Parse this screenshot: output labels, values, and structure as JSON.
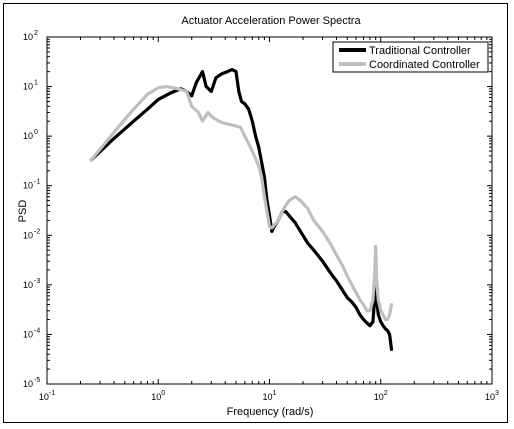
{
  "chart_data": {
    "type": "line",
    "title": "Actuator Acceleration Power Spectra",
    "xlabel": "Frequency (rad/s)",
    "ylabel": "PSD",
    "x_scale": "log",
    "y_scale": "log",
    "xlim": [
      0.1,
      1000
    ],
    "ylim": [
      1e-05,
      100
    ],
    "x_ticks": [
      {
        "value": 0.1,
        "base": "10",
        "exp": "-1"
      },
      {
        "value": 1,
        "base": "10",
        "exp": "0"
      },
      {
        "value": 10,
        "base": "10",
        "exp": "1"
      },
      {
        "value": 100,
        "base": "10",
        "exp": "2"
      },
      {
        "value": 1000,
        "base": "10",
        "exp": "3"
      }
    ],
    "y_ticks": [
      {
        "value": 1e-05,
        "base": "10",
        "exp": "-5"
      },
      {
        "value": 0.0001,
        "base": "10",
        "exp": "-4"
      },
      {
        "value": 0.001,
        "base": "10",
        "exp": "-3"
      },
      {
        "value": 0.01,
        "base": "10",
        "exp": "-2"
      },
      {
        "value": 0.1,
        "base": "10",
        "exp": "-1"
      },
      {
        "value": 1,
        "base": "10",
        "exp": "0"
      },
      {
        "value": 10,
        "base": "10",
        "exp": "1"
      },
      {
        "value": 100,
        "base": "10",
        "exp": "2"
      }
    ],
    "grid": false,
    "legend_position": "top-right",
    "series": [
      {
        "name": "Traditional Controller",
        "color": "#000000",
        "x": [
          0.25,
          0.4,
          0.6,
          0.8,
          1.0,
          1.3,
          1.6,
          1.8,
          2.0,
          2.2,
          2.5,
          2.7,
          3.0,
          3.3,
          3.7,
          4.2,
          4.6,
          5.0,
          5.3,
          5.6,
          6.0,
          6.5,
          7.0,
          7.5,
          8.0,
          8.5,
          9.0,
          9.5,
          10.0,
          10.5,
          11.0,
          12.0,
          13.0,
          14.0,
          15.0,
          17.0,
          19.0,
          22.0,
          25.0,
          30.0,
          35.0,
          40.0,
          45.0,
          50.0,
          55.0,
          60.0,
          65.0,
          70.0,
          75.0,
          80.0,
          85.0,
          88.0,
          90.0,
          92.0,
          95.0,
          100.0,
          105.0,
          110.0,
          115.0,
          120.0,
          125.0
        ],
        "y": [
          0.33,
          0.9,
          2.0,
          3.5,
          5.5,
          7.5,
          9.0,
          8.0,
          6.5,
          12.0,
          20.0,
          10.0,
          8.0,
          15.0,
          18.0,
          20.0,
          22.0,
          20.0,
          8.0,
          5.0,
          4.5,
          3.5,
          2.0,
          1.0,
          0.6,
          0.3,
          0.15,
          0.05,
          0.025,
          0.012,
          0.015,
          0.02,
          0.03,
          0.03,
          0.025,
          0.018,
          0.012,
          0.007,
          0.005,
          0.003,
          0.0018,
          0.0012,
          0.0008,
          0.00055,
          0.00045,
          0.00035,
          0.00025,
          0.0002,
          0.00017,
          0.00015,
          0.00018,
          0.0005,
          0.0015,
          0.0005,
          0.00025,
          0.00018,
          0.00015,
          0.00013,
          0.00012,
          0.0001,
          5e-05
        ]
      },
      {
        "name": "Coordinated Controller",
        "color": "#bfbfbf",
        "x": [
          0.25,
          0.4,
          0.6,
          0.8,
          1.0,
          1.2,
          1.5,
          1.8,
          2.0,
          2.3,
          2.5,
          2.8,
          3.0,
          3.5,
          4.0,
          4.5,
          5.0,
          5.5,
          6.0,
          6.5,
          7.0,
          7.5,
          8.0,
          8.5,
          9.0,
          9.5,
          10.0,
          10.5,
          11.0,
          12.0,
          13.0,
          14.0,
          15.0,
          17.0,
          19.0,
          22.0,
          25.0,
          30.0,
          35.0,
          40.0,
          45.0,
          50.0,
          55.0,
          60.0,
          65.0,
          70.0,
          75.0,
          80.0,
          85.0,
          88.0,
          90.0,
          92.0,
          95.0,
          100.0,
          105.0,
          110.0,
          115.0,
          120.0,
          125.0
        ],
        "y": [
          0.33,
          1.2,
          3.5,
          7.0,
          9.5,
          10.0,
          9.0,
          8.0,
          4.0,
          3.0,
          2.0,
          3.0,
          2.5,
          2.0,
          1.8,
          1.7,
          1.6,
          1.5,
          1.0,
          0.7,
          0.5,
          0.35,
          0.25,
          0.15,
          0.06,
          0.03,
          0.015,
          0.014,
          0.016,
          0.02,
          0.03,
          0.04,
          0.05,
          0.06,
          0.05,
          0.035,
          0.02,
          0.012,
          0.007,
          0.004,
          0.0025,
          0.0015,
          0.001,
          0.0007,
          0.0005,
          0.0004,
          0.0003,
          0.0003,
          0.0005,
          0.0015,
          0.006,
          0.0012,
          0.0005,
          0.0003,
          0.00025,
          0.0002,
          0.0002,
          0.00025,
          0.0004
        ]
      }
    ]
  }
}
